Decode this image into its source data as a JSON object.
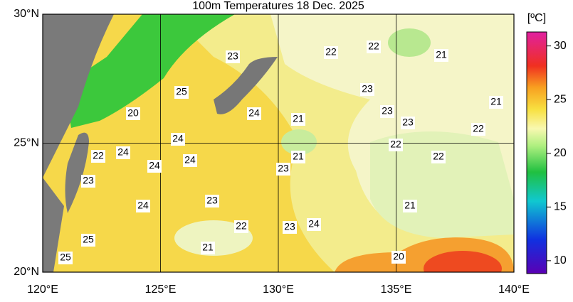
{
  "title": "100m Temperatures  18 Dec. 2025",
  "lat_labels": [
    "30°N",
    "25°N",
    "20°N"
  ],
  "lon_labels": [
    "120°E",
    "125°E",
    "130°E",
    "135°E",
    "140°E"
  ],
  "colorbar": {
    "unit": "[ºC]",
    "range": [
      8.8,
      31.3
    ],
    "ticks": [
      10,
      15,
      20,
      25,
      30
    ]
  },
  "contour_labels": [
    23,
    22,
    22,
    21,
    25,
    23,
    24,
    20,
    21,
    23,
    23,
    21,
    22,
    24,
    22,
    22,
    24,
    24,
    24,
    21,
    23,
    22,
    23,
    23,
    24,
    21,
    22,
    23,
    24,
    25,
    21,
    20,
    25
  ]
}
